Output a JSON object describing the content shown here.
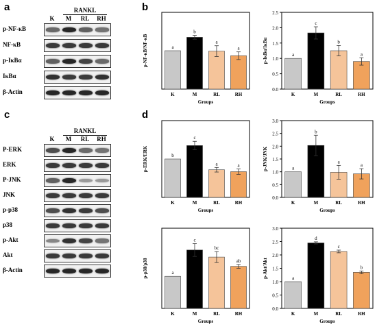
{
  "panels": {
    "a": "a",
    "b": "b",
    "c": "c",
    "d": "d"
  },
  "blot_a": {
    "treatment": "RANKL",
    "lanes": [
      "K",
      "M",
      "RL",
      "RH"
    ],
    "rows": [
      {
        "label": "p-NF-κB",
        "intensity": [
          0.55,
          0.9,
          0.6,
          0.5
        ]
      },
      {
        "label": "NF-κB",
        "intensity": [
          0.8,
          0.8,
          0.8,
          0.8
        ]
      },
      {
        "label": "p-IκBα",
        "intensity": [
          0.6,
          0.9,
          0.75,
          0.55
        ]
      },
      {
        "label": "IκBα",
        "intensity": [
          0.85,
          0.8,
          0.8,
          0.85
        ]
      },
      {
        "label": "β-Actin",
        "intensity": [
          0.9,
          0.9,
          0.9,
          0.9
        ]
      }
    ]
  },
  "blot_c": {
    "treatment": "RANKL",
    "lanes": [
      "K",
      "M",
      "RL",
      "RH"
    ],
    "rows": [
      {
        "label": "P-ERK",
        "intensity": [
          0.7,
          0.9,
          0.55,
          0.5
        ]
      },
      {
        "label": "ERK",
        "intensity": [
          0.8,
          0.8,
          0.8,
          0.8
        ]
      },
      {
        "label": "P-JNK",
        "intensity": [
          0.6,
          0.9,
          0.3,
          0.3
        ]
      },
      {
        "label": "JNK",
        "intensity": [
          0.8,
          0.8,
          0.8,
          0.8
        ]
      },
      {
        "label": "p-p38",
        "intensity": [
          0.7,
          0.85,
          0.8,
          0.7
        ]
      },
      {
        "label": "p38",
        "intensity": [
          0.8,
          0.8,
          0.8,
          0.8
        ]
      },
      {
        "label": "p-Akt",
        "intensity": [
          0.4,
          0.85,
          0.75,
          0.5
        ]
      },
      {
        "label": "Akt",
        "intensity": [
          0.8,
          0.8,
          0.8,
          0.8
        ]
      },
      {
        "label": "β-Actin",
        "intensity": [
          0.9,
          0.9,
          0.9,
          0.9
        ]
      }
    ]
  },
  "colors": {
    "K": "#c8c8c8",
    "M": "#000000",
    "RL": "#f5c49a",
    "RH": "#f0a25c"
  },
  "chart_data": [
    {
      "id": "nfkb",
      "type": "bar",
      "categories": [
        "K",
        "M",
        "RL",
        "RH"
      ],
      "values": [
        1.0,
        1.35,
        0.99,
        0.87
      ],
      "errors": [
        0,
        0.05,
        0.14,
        0.1
      ],
      "letters": [
        "a",
        "b",
        "a",
        "a"
      ],
      "ylabel": "p-NF-κB/NF-κB",
      "xlabel": "Groups",
      "ylim": [
        0,
        2.0
      ],
      "yticks": []
    },
    {
      "id": "ikba",
      "type": "bar",
      "categories": [
        "K",
        "M",
        "RL",
        "RH"
      ],
      "values": [
        1.0,
        1.83,
        1.25,
        0.9
      ],
      "errors": [
        0,
        0.2,
        0.17,
        0.12
      ],
      "letters": [
        "a",
        "c",
        "b",
        "a"
      ],
      "ylabel": "p-IκBα/IκBα",
      "xlabel": "Groups",
      "ylim": [
        0,
        2.5
      ],
      "yticks": [
        0.0,
        0.5,
        1.0,
        1.5,
        2.0,
        2.5
      ]
    },
    {
      "id": "erk",
      "type": "bar",
      "categories": [
        "K",
        "M",
        "RL",
        "RH"
      ],
      "values": [
        1.0,
        1.35,
        0.72,
        0.67
      ],
      "errors": [
        0,
        0.11,
        0.06,
        0.07
      ],
      "letters": [
        "b",
        "c",
        "a",
        "a"
      ],
      "ylabel": "p-ERK/ERK",
      "xlabel": "Groups",
      "ylim": [
        0,
        2.0
      ],
      "yticks": []
    },
    {
      "id": "jnk",
      "type": "bar",
      "categories": [
        "K",
        "M",
        "RL",
        "RH"
      ],
      "values": [
        1.0,
        2.03,
        0.98,
        0.92
      ],
      "errors": [
        0,
        0.4,
        0.27,
        0.2
      ],
      "letters": [
        "a",
        "b",
        "a",
        "a"
      ],
      "ylabel": "p-JNK/JNK",
      "xlabel": "Groups",
      "ylim": [
        0,
        3.0
      ],
      "yticks": [
        0.0,
        0.5,
        1.0,
        1.5,
        2.0,
        2.5,
        3.0
      ]
    },
    {
      "id": "p38",
      "type": "bar",
      "categories": [
        "K",
        "M",
        "RL",
        "RH"
      ],
      "values": [
        1.0,
        1.82,
        1.6,
        1.31
      ],
      "errors": [
        0,
        0.2,
        0.17,
        0.06
      ],
      "letters": [
        "a",
        "c",
        "bc",
        "ab"
      ],
      "ylabel": "p-p38/p38",
      "xlabel": "Groups",
      "ylim": [
        0,
        2.5
      ],
      "yticks": []
    },
    {
      "id": "akt",
      "type": "bar",
      "categories": [
        "K",
        "M",
        "RL",
        "RH"
      ],
      "values": [
        1.0,
        2.45,
        2.13,
        1.35
      ],
      "errors": [
        0,
        0.04,
        0.05,
        0.05
      ],
      "letters": [
        "a",
        "d",
        "c",
        "b"
      ],
      "ylabel": "p-Akt/Akt",
      "xlabel": "Groups",
      "ylim": [
        0,
        3.0
      ],
      "yticks": [
        0.0,
        0.5,
        1.0,
        1.5,
        2.0,
        2.5,
        3.0
      ]
    }
  ]
}
